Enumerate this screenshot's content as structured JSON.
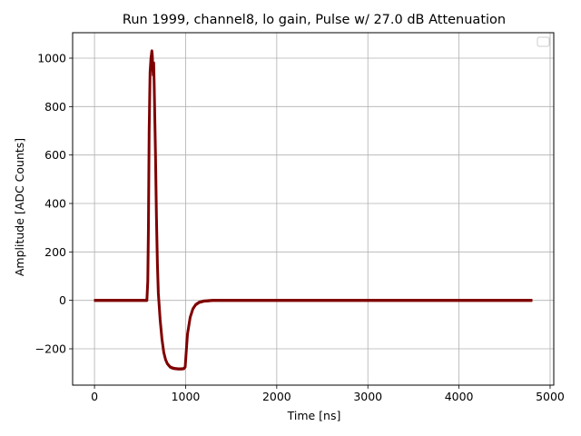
{
  "chart_data": {
    "type": "line",
    "title": "Run 1999, channel8, lo gain, Pulse w/ 27.0 dB Attenuation",
    "xlabel": "Time [ns]",
    "ylabel": "Amplitude [ADC Counts]",
    "xlim": [
      -240,
      5040
    ],
    "ylim": [
      -350,
      1105
    ],
    "xticks": [
      0,
      1000,
      2000,
      3000,
      4000,
      5000
    ],
    "xtick_labels": [
      "0",
      "1000",
      "2000",
      "3000",
      "4000",
      "5000"
    ],
    "yticks": [
      -200,
      0,
      200,
      400,
      600,
      800,
      1000
    ],
    "ytick_labels": [
      "−200",
      "0",
      "200",
      "400",
      "600",
      "800",
      "1000"
    ],
    "grid": true,
    "legend": "top-right (empty)",
    "series": [
      {
        "color": "#7f0000",
        "noise_amplitude": 6,
        "x": [
          0,
          100,
          200,
          300,
          400,
          500,
          575,
          585,
          592,
          600,
          610,
          620,
          630,
          635,
          640,
          645,
          650,
          655,
          660,
          670,
          680,
          690,
          700,
          720,
          740,
          760,
          780,
          800,
          830,
          860,
          890,
          920,
          950,
          980,
          995,
          1005,
          1020,
          1050,
          1080,
          1110,
          1150,
          1200,
          1300,
          1500,
          2000,
          2500,
          3000,
          3500,
          4000,
          4500,
          4800
        ],
        "y": [
          0,
          0,
          0,
          0,
          0,
          0,
          0,
          80,
          300,
          700,
          940,
          1000,
          1030,
          1010,
          960,
          930,
          980,
          900,
          800,
          600,
          350,
          150,
          30,
          -80,
          -160,
          -215,
          -245,
          -262,
          -275,
          -280,
          -282,
          -283,
          -283,
          -282,
          -275,
          -220,
          -140,
          -70,
          -35,
          -18,
          -8,
          -3,
          0,
          0,
          0,
          0,
          0,
          0,
          0,
          0,
          0
        ]
      }
    ]
  }
}
